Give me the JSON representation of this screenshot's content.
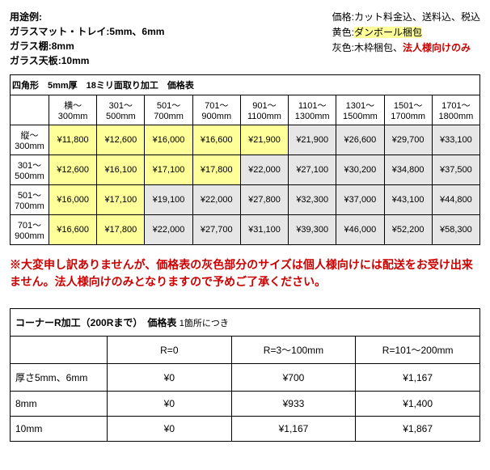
{
  "header": {
    "usage_title": "用途例:",
    "usage_lines": [
      "ガラスマット・トレイ:5mm、6mm",
      "ガラス棚:8mm",
      "ガラス天板:10mm"
    ],
    "price_note": "価格:カット料金込、送料込、税込",
    "yellow_label": "黄色:",
    "yellow_text": "ダンボール梱包",
    "gray_label": "灰色:木枠梱包、",
    "gray_corp": "法人様向けのみ"
  },
  "price_table": {
    "title": "四角形　5mm厚　18ミリ面取り加工　価格表",
    "cols": [
      "横～300mm",
      "301～500mm",
      "501～700mm",
      "701～900mm",
      "901～1100mm",
      "1101～1300mm",
      "1301～1500mm",
      "1501～1700mm",
      "1701～1800mm"
    ],
    "rows": [
      {
        "h": "縦～300mm",
        "cells": [
          {
            "v": "¥11,800",
            "c": "y"
          },
          {
            "v": "¥12,600",
            "c": "y"
          },
          {
            "v": "¥16,000",
            "c": "y"
          },
          {
            "v": "¥16,600",
            "c": "y"
          },
          {
            "v": "¥21,900",
            "c": "y"
          },
          {
            "v": "¥21,900",
            "c": "g"
          },
          {
            "v": "¥26,600",
            "c": "g"
          },
          {
            "v": "¥29,700",
            "c": "g"
          },
          {
            "v": "¥33,100",
            "c": "g"
          }
        ]
      },
      {
        "h": "301～500mm",
        "cells": [
          {
            "v": "¥12,600",
            "c": "y"
          },
          {
            "v": "¥16,100",
            "c": "y"
          },
          {
            "v": "¥17,100",
            "c": "y"
          },
          {
            "v": "¥17,800",
            "c": "y"
          },
          {
            "v": "¥22,000",
            "c": "g"
          },
          {
            "v": "¥27,100",
            "c": "g"
          },
          {
            "v": "¥30,200",
            "c": "g"
          },
          {
            "v": "¥34,800",
            "c": "g"
          },
          {
            "v": "¥37,500",
            "c": "g"
          }
        ]
      },
      {
        "h": "501～700mm",
        "cells": [
          {
            "v": "¥16,000",
            "c": "y"
          },
          {
            "v": "¥17,100",
            "c": "y"
          },
          {
            "v": "¥19,100",
            "c": "g"
          },
          {
            "v": "¥22,000",
            "c": "g"
          },
          {
            "v": "¥27,800",
            "c": "g"
          },
          {
            "v": "¥32,300",
            "c": "g"
          },
          {
            "v": "¥37,000",
            "c": "g"
          },
          {
            "v": "¥43,100",
            "c": "g"
          },
          {
            "v": "¥44,800",
            "c": "g"
          }
        ]
      },
      {
        "h": "701～900mm",
        "cells": [
          {
            "v": "¥16,600",
            "c": "y"
          },
          {
            "v": "¥17,800",
            "c": "y"
          },
          {
            "v": "¥22,000",
            "c": "g"
          },
          {
            "v": "¥27,700",
            "c": "g"
          },
          {
            "v": "¥31,100",
            "c": "g"
          },
          {
            "v": "¥39,300",
            "c": "g"
          },
          {
            "v": "¥46,000",
            "c": "g"
          },
          {
            "v": "¥52,200",
            "c": "g"
          },
          {
            "v": "¥58,300",
            "c": "g"
          }
        ]
      }
    ]
  },
  "note": "※大変申し訳ありませんが、価格表の灰色部分のサイズは個人様向けには配送をお受け出来ません。法人様向けのみとなりますので予めご了承ください。",
  "corner_table": {
    "title": "コーナーR加工（200Rまで）　価格表",
    "subtitle": "1箇所につき",
    "cols": [
      "R=0",
      "R=3～100mm",
      "R=101～200mm"
    ],
    "rows": [
      {
        "h": "厚さ5mm、6mm",
        "v": [
          "¥0",
          "¥700",
          "¥1,167"
        ]
      },
      {
        "h": "8mm",
        "v": [
          "¥0",
          "¥933",
          "¥1,400"
        ]
      },
      {
        "h": "10mm",
        "v": [
          "¥0",
          "¥1,167",
          "¥1,867"
        ]
      }
    ]
  }
}
